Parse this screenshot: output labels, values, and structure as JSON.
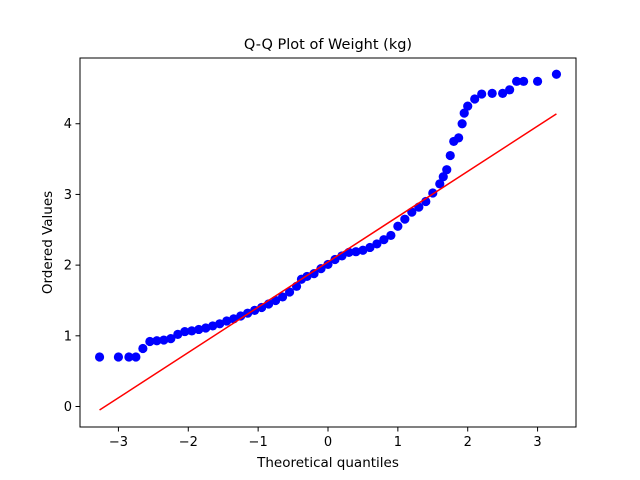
{
  "chart_data": {
    "type": "scatter",
    "title": "Q-Q Plot of Weight (kg)",
    "xlabel": "Theoretical quantiles",
    "ylabel": "Ordered Values",
    "xlim": [
      -3.55,
      3.55
    ],
    "ylim": [
      -0.29,
      4.93
    ],
    "x_ticks": [
      {
        "value": -3,
        "label": "−3"
      },
      {
        "value": -2,
        "label": "−2"
      },
      {
        "value": -1,
        "label": "−1"
      },
      {
        "value": 0,
        "label": "0"
      },
      {
        "value": 1,
        "label": "1"
      },
      {
        "value": 2,
        "label": "2"
      },
      {
        "value": 3,
        "label": "3"
      }
    ],
    "y_ticks": [
      {
        "value": 0,
        "label": "0"
      },
      {
        "value": 1,
        "label": "1"
      },
      {
        "value": 2,
        "label": "2"
      },
      {
        "value": 3,
        "label": "3"
      },
      {
        "value": 4,
        "label": "4"
      }
    ],
    "grid": false,
    "series": [
      {
        "kind": "points",
        "color": "#0000ff",
        "points": [
          [
            -3.27,
            0.7
          ],
          [
            -3.0,
            0.7
          ],
          [
            -2.85,
            0.7
          ],
          [
            -2.75,
            0.7
          ],
          [
            -2.65,
            0.82
          ],
          [
            -2.55,
            0.92
          ],
          [
            -2.45,
            0.93
          ],
          [
            -2.35,
            0.94
          ],
          [
            -2.25,
            0.96
          ],
          [
            -2.15,
            1.02
          ],
          [
            -2.05,
            1.06
          ],
          [
            -1.95,
            1.07
          ],
          [
            -1.85,
            1.09
          ],
          [
            -1.75,
            1.11
          ],
          [
            -1.65,
            1.14
          ],
          [
            -1.55,
            1.17
          ],
          [
            -1.45,
            1.21
          ],
          [
            -1.35,
            1.24
          ],
          [
            -1.25,
            1.28
          ],
          [
            -1.15,
            1.32
          ],
          [
            -1.05,
            1.36
          ],
          [
            -0.95,
            1.4
          ],
          [
            -0.85,
            1.45
          ],
          [
            -0.75,
            1.5
          ],
          [
            -0.65,
            1.55
          ],
          [
            -0.55,
            1.62
          ],
          [
            -0.45,
            1.7
          ],
          [
            -0.38,
            1.8
          ],
          [
            -0.3,
            1.84
          ],
          [
            -0.2,
            1.88
          ],
          [
            -0.1,
            1.95
          ],
          [
            0.0,
            2.01
          ],
          [
            0.1,
            2.08
          ],
          [
            0.2,
            2.13
          ],
          [
            0.3,
            2.18
          ],
          [
            0.4,
            2.19
          ],
          [
            0.5,
            2.21
          ],
          [
            0.6,
            2.25
          ],
          [
            0.7,
            2.3
          ],
          [
            0.8,
            2.36
          ],
          [
            0.9,
            2.42
          ],
          [
            1.0,
            2.55
          ],
          [
            1.1,
            2.65
          ],
          [
            1.2,
            2.75
          ],
          [
            1.3,
            2.82
          ],
          [
            1.4,
            2.9
          ],
          [
            1.5,
            3.02
          ],
          [
            1.6,
            3.15
          ],
          [
            1.65,
            3.25
          ],
          [
            1.7,
            3.35
          ],
          [
            1.75,
            3.55
          ],
          [
            1.8,
            3.75
          ],
          [
            1.87,
            3.8
          ],
          [
            1.92,
            4.0
          ],
          [
            1.95,
            4.15
          ],
          [
            2.0,
            4.25
          ],
          [
            2.1,
            4.35
          ],
          [
            2.2,
            4.42
          ],
          [
            2.35,
            4.43
          ],
          [
            2.5,
            4.43
          ],
          [
            2.6,
            4.48
          ],
          [
            2.7,
            4.6
          ],
          [
            2.8,
            4.6
          ],
          [
            3.0,
            4.6
          ],
          [
            3.27,
            4.7
          ]
        ]
      },
      {
        "kind": "line",
        "color": "#ff0000",
        "points": [
          [
            -3.27,
            -0.05
          ],
          [
            3.27,
            4.14
          ]
        ]
      }
    ]
  }
}
